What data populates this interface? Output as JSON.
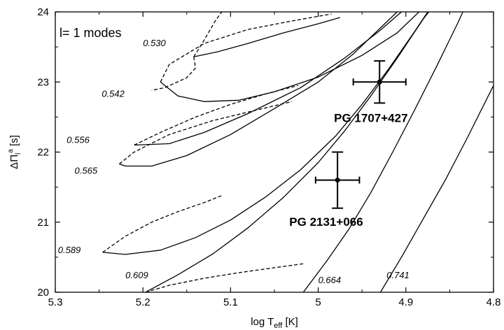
{
  "chart_data": {
    "type": "line",
    "title": "",
    "panel_label": "l= 1 modes",
    "xlabel": {
      "prefix": "log T",
      "subscript": "eff",
      "suffix": " [K]"
    },
    "ylabel": {
      "base": "ΔΠ",
      "sub": "l",
      "sup": "a",
      "suffix": " [s]"
    },
    "xlim": [
      5.3,
      4.8
    ],
    "ylim": [
      20,
      24
    ],
    "x_reversed": true,
    "grid": false,
    "x_ticks": [
      {
        "v": 5.3,
        "label": "5.3"
      },
      {
        "v": 5.2,
        "label": "5.2"
      },
      {
        "v": 5.1,
        "label": "5.1"
      },
      {
        "v": 5.0,
        "label": "5"
      },
      {
        "v": 4.9,
        "label": "4.9"
      },
      {
        "v": 4.8,
        "label": "4.8"
      }
    ],
    "y_ticks": [
      {
        "v": 20,
        "label": "20"
      },
      {
        "v": 21,
        "label": "21"
      },
      {
        "v": 22,
        "label": "22"
      },
      {
        "v": 23,
        "label": "23"
      },
      {
        "v": 24,
        "label": "24"
      }
    ],
    "series": [
      {
        "name": "0.530",
        "style": "solid",
        "points": [
          [
            5.142,
            23.36
          ],
          [
            5.115,
            23.43
          ],
          [
            5.08,
            23.55
          ],
          [
            5.04,
            23.7
          ],
          [
            5.0,
            23.83
          ],
          [
            4.975,
            23.92
          ]
        ]
      },
      {
        "name": "0.530",
        "style": "dashed",
        "points": [
          [
            5.142,
            23.36
          ],
          [
            5.14,
            23.2
          ],
          [
            5.15,
            23.06
          ],
          [
            5.175,
            22.92
          ],
          [
            5.19,
            22.88
          ]
        ]
      },
      {
        "name": "0.530",
        "style": "dashed",
        "points": [
          [
            5.142,
            23.36
          ],
          [
            5.13,
            23.6
          ],
          [
            5.117,
            23.88
          ],
          [
            5.11,
            24.0
          ]
        ]
      },
      {
        "name": "0.542",
        "style": "solid",
        "points": [
          [
            5.18,
            23.0
          ],
          [
            5.16,
            22.8
          ],
          [
            5.13,
            22.72
          ],
          [
            5.09,
            22.74
          ],
          [
            5.05,
            22.86
          ],
          [
            5.0,
            23.07
          ],
          [
            4.95,
            23.38
          ],
          [
            4.91,
            23.7
          ],
          [
            4.885,
            24.0
          ]
        ]
      },
      {
        "name": "0.542",
        "style": "dashed",
        "points": [
          [
            5.18,
            23.0
          ],
          [
            5.17,
            23.25
          ],
          [
            5.13,
            23.55
          ],
          [
            5.08,
            23.75
          ],
          [
            5.03,
            23.87
          ],
          [
            4.985,
            23.97
          ]
        ]
      },
      {
        "name": "0.556",
        "style": "solid",
        "points": [
          [
            5.21,
            22.1
          ],
          [
            5.17,
            22.12
          ],
          [
            5.13,
            22.28
          ],
          [
            5.08,
            22.55
          ],
          [
            5.02,
            22.92
          ],
          [
            4.97,
            23.34
          ],
          [
            4.93,
            23.73
          ],
          [
            4.905,
            24.0
          ]
        ]
      },
      {
        "name": "0.556",
        "style": "dashed",
        "points": [
          [
            5.21,
            22.1
          ],
          [
            5.18,
            22.28
          ],
          [
            5.14,
            22.5
          ],
          [
            5.1,
            22.68
          ],
          [
            5.06,
            22.83
          ],
          [
            5.023,
            22.95
          ]
        ]
      },
      {
        "name": "0.565",
        "style": "solid",
        "points": [
          [
            5.227,
            21.83
          ],
          [
            5.22,
            21.8
          ],
          [
            5.19,
            21.8
          ],
          [
            5.15,
            21.95
          ],
          [
            5.1,
            22.25
          ],
          [
            5.05,
            22.62
          ],
          [
            5.0,
            23.0
          ],
          [
            4.96,
            23.4
          ],
          [
            4.93,
            23.76
          ],
          [
            4.91,
            24.0
          ]
        ]
      },
      {
        "name": "0.565",
        "style": "dashed",
        "points": [
          [
            5.227,
            21.83
          ],
          [
            5.21,
            22.0
          ],
          [
            5.17,
            22.25
          ],
          [
            5.12,
            22.45
          ],
          [
            5.07,
            22.6
          ],
          [
            5.03,
            22.72
          ]
        ]
      },
      {
        "name": "0.589",
        "style": "solid",
        "points": [
          [
            5.246,
            20.57
          ],
          [
            5.22,
            20.54
          ],
          [
            5.18,
            20.6
          ],
          [
            5.14,
            20.78
          ],
          [
            5.1,
            21.03
          ],
          [
            5.06,
            21.36
          ],
          [
            5.02,
            21.75
          ],
          [
            4.98,
            22.23
          ],
          [
            4.95,
            22.68
          ],
          [
            4.92,
            23.18
          ],
          [
            4.89,
            23.72
          ],
          [
            4.875,
            24.0
          ]
        ]
      },
      {
        "name": "0.589",
        "style": "dashed",
        "points": [
          [
            5.246,
            20.57
          ],
          [
            5.22,
            20.8
          ],
          [
            5.19,
            21.0
          ],
          [
            5.16,
            21.15
          ],
          [
            5.13,
            21.28
          ],
          [
            5.11,
            21.38
          ]
        ]
      },
      {
        "name": "0.609",
        "style": "solid",
        "points": [
          [
            5.197,
            20.0
          ],
          [
            5.16,
            20.25
          ],
          [
            5.12,
            20.55
          ],
          [
            5.08,
            20.92
          ],
          [
            5.04,
            21.35
          ],
          [
            5.0,
            21.85
          ],
          [
            4.97,
            22.3
          ],
          [
            4.94,
            22.8
          ],
          [
            4.91,
            23.34
          ],
          [
            4.88,
            23.9
          ],
          [
            4.874,
            24.0
          ]
        ]
      },
      {
        "name": "0.609",
        "style": "dashed",
        "points": [
          [
            5.197,
            20.0
          ],
          [
            5.17,
            20.1
          ],
          [
            5.13,
            20.2
          ],
          [
            5.09,
            20.28
          ],
          [
            5.05,
            20.35
          ],
          [
            5.015,
            20.41
          ]
        ]
      },
      {
        "name": "0.664",
        "style": "solid",
        "points": [
          [
            5.017,
            20.0
          ],
          [
            4.99,
            20.45
          ],
          [
            4.965,
            20.9
          ],
          [
            4.94,
            21.42
          ],
          [
            4.915,
            22.0
          ],
          [
            4.89,
            22.6
          ],
          [
            4.865,
            23.22
          ],
          [
            4.84,
            23.86
          ],
          [
            4.835,
            24.0
          ]
        ]
      },
      {
        "name": "0.741",
        "style": "solid",
        "points": [
          [
            4.929,
            20.0
          ],
          [
            4.905,
            20.5
          ],
          [
            4.88,
            21.05
          ],
          [
            4.855,
            21.6
          ],
          [
            4.83,
            22.2
          ],
          [
            4.81,
            22.7
          ],
          [
            4.8,
            22.95
          ]
        ]
      }
    ],
    "curve_labels": [
      {
        "text": "0.530",
        "x": 5.2,
        "y": 23.55
      },
      {
        "text": "0.542",
        "x": 5.247,
        "y": 22.83
      },
      {
        "text": "0.556",
        "x": 5.287,
        "y": 22.17
      },
      {
        "text": "0.565",
        "x": 5.278,
        "y": 21.73
      },
      {
        "text": "0.589",
        "x": 5.297,
        "y": 20.6
      },
      {
        "text": "0.609",
        "x": 5.22,
        "y": 20.24
      },
      {
        "text": "0.664",
        "x": 5.0,
        "y": 20.17
      },
      {
        "text": "0.741",
        "x": 4.922,
        "y": 20.24
      }
    ],
    "stars": [
      {
        "name": "PG 1707+427",
        "x": 4.93,
        "y": 23.0,
        "xerr": 0.03,
        "yerr": 0.3,
        "label_x": 4.982,
        "label_y": 22.43
      },
      {
        "name": "PG 2131+066",
        "x": 4.978,
        "y": 21.6,
        "xerr": 0.025,
        "yerr": 0.4,
        "label_x": 5.033,
        "label_y": 20.95
      }
    ]
  }
}
